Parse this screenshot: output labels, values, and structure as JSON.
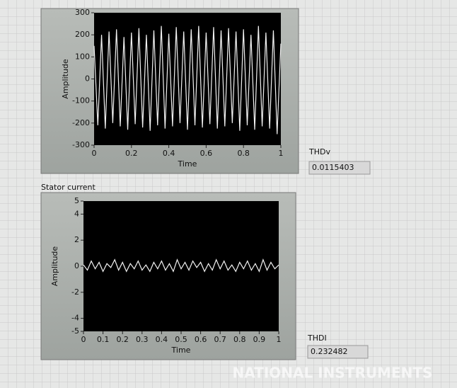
{
  "chart_data": [
    {
      "type": "line",
      "xlabel": "Time",
      "ylabel": "Amplitude",
      "x": [
        0,
        0.02,
        0.04,
        0.06,
        0.08,
        0.1,
        0.12,
        0.14,
        0.16,
        0.18,
        0.2,
        0.22,
        0.24,
        0.26,
        0.28,
        0.3,
        0.32,
        0.34,
        0.36,
        0.38,
        0.4,
        0.42,
        0.44,
        0.46,
        0.48,
        0.5,
        0.52,
        0.54,
        0.56,
        0.58,
        0.6,
        0.62,
        0.64,
        0.66,
        0.68,
        0.7,
        0.72,
        0.74,
        0.76,
        0.78,
        0.8,
        0.82,
        0.84,
        0.86,
        0.88,
        0.9,
        0.92,
        0.94,
        0.96,
        0.98,
        1
      ],
      "series": [
        {
          "color": "#f2f2f2",
          "values": [
            150,
            -210,
            200,
            -225,
            215,
            -200,
            225,
            -215,
            190,
            -230,
            210,
            -205,
            230,
            -220,
            200,
            -235,
            220,
            -210,
            240,
            -225,
            205,
            -215,
            235,
            -200,
            215,
            -230,
            225,
            -210,
            240,
            -220,
            210,
            -205,
            235,
            -225,
            220,
            -215,
            230,
            -200,
            215,
            -235,
            225,
            -210,
            200,
            -230,
            240,
            -215,
            210,
            -225,
            220,
            -250,
            160
          ]
        }
      ],
      "xlim": [
        0,
        1
      ],
      "xticks": [
        0,
        0.2,
        0.4,
        0.6,
        0.8,
        1
      ],
      "ylim": [
        -300,
        300
      ],
      "yticks": [
        -300,
        -200,
        -100,
        0,
        100,
        200,
        300
      ]
    },
    {
      "type": "line",
      "title": "Stator current",
      "xlabel": "Time",
      "ylabel": "Amplitude",
      "x": [
        0,
        0.02,
        0.04,
        0.06,
        0.08,
        0.1,
        0.12,
        0.14,
        0.16,
        0.18,
        0.2,
        0.22,
        0.24,
        0.26,
        0.28,
        0.3,
        0.32,
        0.34,
        0.36,
        0.38,
        0.4,
        0.42,
        0.44,
        0.46,
        0.48,
        0.5,
        0.52,
        0.54,
        0.56,
        0.58,
        0.6,
        0.62,
        0.64,
        0.66,
        0.68,
        0.7,
        0.72,
        0.74,
        0.76,
        0.78,
        0.8,
        0.82,
        0.84,
        0.86,
        0.88,
        0.9,
        0.92,
        0.94,
        0.96,
        0.98,
        1
      ],
      "series": [
        {
          "color": "#f2f2f2",
          "values": [
            0.1,
            -0.3,
            0.4,
            -0.2,
            0.3,
            -0.4,
            0.2,
            -0.1,
            0.5,
            -0.3,
            0.3,
            -0.4,
            0.2,
            -0.2,
            0.4,
            -0.3,
            0.1,
            -0.4,
            0.3,
            -0.2,
            0.4,
            -0.3,
            0.2,
            -0.4,
            0.5,
            -0.2,
            0.3,
            -0.3,
            0.4,
            -0.1,
            0.3,
            -0.4,
            0.2,
            -0.3,
            0.5,
            -0.2,
            0.4,
            -0.3,
            0.1,
            -0.4,
            0.3,
            -0.2,
            0.4,
            -0.3,
            0.2,
            -0.4,
            0.5,
            -0.3,
            0.3,
            -0.2,
            0.1
          ]
        }
      ],
      "xlim": [
        0,
        1
      ],
      "xticks": [
        0,
        0.1,
        0.2,
        0.3,
        0.4,
        0.5,
        0.6,
        0.7,
        0.8,
        0.9,
        1
      ],
      "ylim": [
        -5,
        5
      ],
      "yticks": [
        -5,
        -4,
        -2,
        0,
        2,
        4,
        5
      ]
    }
  ],
  "indicators": [
    {
      "label": "THDv",
      "value": "0.0115403"
    },
    {
      "label": "THDI",
      "value": "0.232482"
    }
  ],
  "watermark": "NATIONAL INSTRUMENTS"
}
